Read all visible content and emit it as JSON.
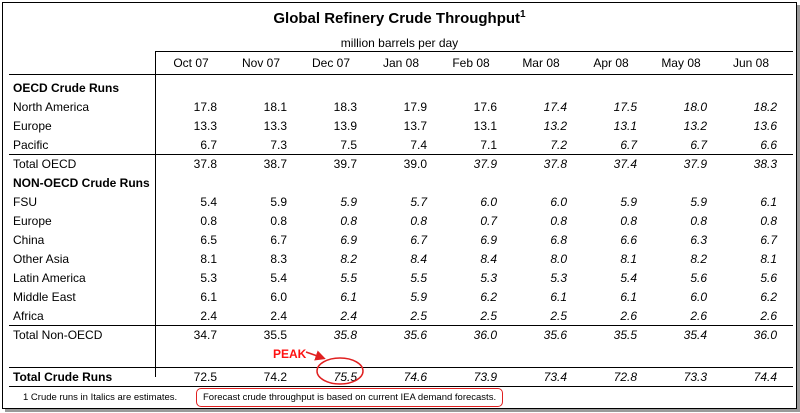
{
  "title": "Global Refinery Crude Throughput",
  "title_sup": "1",
  "subtitle": "million barrels per day",
  "columns": [
    "Oct 07",
    "Nov 07",
    "Dec 07",
    "Jan 08",
    "Feb 08",
    "Mar 08",
    "Apr 08",
    "May 08",
    "Jun 08"
  ],
  "section_oecd": "OECD Crude Runs",
  "section_nonoecd": "NON-OECD Crude Runs",
  "oecd_rows": [
    {
      "label": "North America",
      "values": [
        "17.8",
        "18.1",
        "18.3",
        "17.9",
        "17.6",
        "17.4",
        "17.5",
        "18.0",
        "18.2"
      ]
    },
    {
      "label": "Europe",
      "values": [
        "13.3",
        "13.3",
        "13.9",
        "13.7",
        "13.1",
        "13.2",
        "13.1",
        "13.2",
        "13.6"
      ]
    },
    {
      "label": "Pacific",
      "values": [
        "6.7",
        "7.3",
        "7.5",
        "7.4",
        "7.1",
        "7.2",
        "6.7",
        "6.7",
        "6.6"
      ]
    }
  ],
  "total_oecd": {
    "label": "Total OECD",
    "values": [
      "37.8",
      "38.7",
      "39.7",
      "39.0",
      "37.9",
      "37.8",
      "37.4",
      "37.9",
      "38.3"
    ]
  },
  "nonoecd_rows": [
    {
      "label": "FSU",
      "values": [
        "5.4",
        "5.9",
        "5.9",
        "5.7",
        "6.0",
        "6.0",
        "5.9",
        "5.9",
        "6.1"
      ]
    },
    {
      "label": "Europe",
      "values": [
        "0.8",
        "0.8",
        "0.8",
        "0.8",
        "0.7",
        "0.8",
        "0.8",
        "0.8",
        "0.8"
      ]
    },
    {
      "label": "China",
      "values": [
        "6.5",
        "6.7",
        "6.9",
        "6.7",
        "6.9",
        "6.8",
        "6.6",
        "6.3",
        "6.7"
      ]
    },
    {
      "label": "Other Asia",
      "values": [
        "8.1",
        "8.3",
        "8.2",
        "8.4",
        "8.4",
        "8.0",
        "8.1",
        "8.2",
        "8.1"
      ]
    },
    {
      "label": "Latin America",
      "values": [
        "5.3",
        "5.4",
        "5.5",
        "5.5",
        "5.3",
        "5.3",
        "5.4",
        "5.6",
        "5.6"
      ]
    },
    {
      "label": "Middle East",
      "values": [
        "6.1",
        "6.0",
        "6.1",
        "5.9",
        "6.2",
        "6.1",
        "6.1",
        "6.0",
        "6.2"
      ]
    },
    {
      "label": "Africa",
      "values": [
        "2.4",
        "2.4",
        "2.4",
        "2.5",
        "2.5",
        "2.5",
        "2.6",
        "2.6",
        "2.6"
      ]
    }
  ],
  "total_nonoecd": {
    "label": "Total Non-OECD",
    "values": [
      "34.7",
      "35.5",
      "35.8",
      "35.6",
      "36.0",
      "35.6",
      "35.5",
      "35.4",
      "36.0"
    ]
  },
  "total_crude": {
    "label": "Total Crude Runs",
    "values": [
      "72.5",
      "74.2",
      "75.5",
      "74.6",
      "73.9",
      "73.4",
      "72.8",
      "73.3",
      "74.4"
    ]
  },
  "peak_label": "PEAK",
  "footnote_1": "1  Crude runs in Italics are estimates.",
  "footnote_2": "Forecast crude throughput is based on current IEA demand forecasts.",
  "colors": {
    "annotation": "#e02020",
    "text": "#000000"
  }
}
